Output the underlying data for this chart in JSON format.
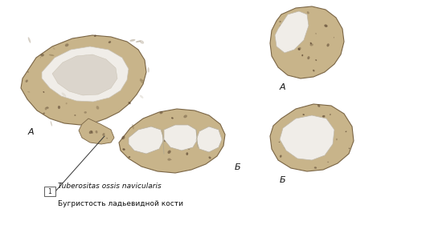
{
  "background_color": "#ffffff",
  "fig_width": 5.3,
  "fig_height": 2.81,
  "dpi": 100,
  "label_A_left": "A",
  "label_B_left": "Б",
  "label_A_right": "A",
  "label_B_right": "Б",
  "annotation_latin": "Tuberositas ossis navicularis",
  "annotation_russian": "Бугристость ладьевидной кости",
  "number_box": "1",
  "font_size_labels": 8,
  "font_size_annotation": 6.5,
  "bone_base": "#c8b48a",
  "bone_dark": "#7a6545",
  "bone_light": "#e8dcc8",
  "cartilage": "#dedad2",
  "cartilage_bright": "#f0ede8"
}
